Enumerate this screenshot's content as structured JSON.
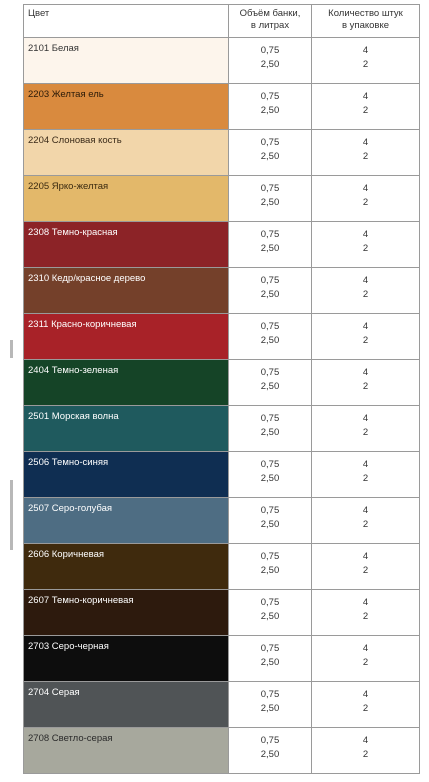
{
  "header": {
    "color": "Цвет",
    "volume_line1": "Объём банки,",
    "volume_line2": "в литрах",
    "qty_line1": "Количество штук",
    "qty_line2": "в упаковке"
  },
  "rows": [
    {
      "name": "2101 Белая",
      "color": "#fdf5ec",
      "text": "#333333",
      "v1": "0,75",
      "v2": "2,50",
      "q1": "4",
      "q2": "2"
    },
    {
      "name": "2203 Желтая ель",
      "color": "#d98a3e",
      "text": "#2a1a08",
      "v1": "0,75",
      "v2": "2,50",
      "q1": "4",
      "q2": "2"
    },
    {
      "name": "2204 Слоновая кость",
      "color": "#f2d6aa",
      "text": "#3a2a18",
      "v1": "0,75",
      "v2": "2,50",
      "q1": "4",
      "q2": "2"
    },
    {
      "name": "2205 Ярко-желтая",
      "color": "#e3b86a",
      "text": "#3a2a10",
      "v1": "0,75",
      "v2": "2,50",
      "q1": "4",
      "q2": "2"
    },
    {
      "name": "2308 Темно-красная",
      "color": "#8c2327",
      "text": "#ffffff",
      "v1": "0,75",
      "v2": "2,50",
      "q1": "4",
      "q2": "2"
    },
    {
      "name": "2310 Кедр/красное дерево",
      "color": "#74402a",
      "text": "#ffffff",
      "v1": "0,75",
      "v2": "2,50",
      "q1": "4",
      "q2": "2"
    },
    {
      "name": "2311 Красно-коричневая",
      "color": "#a82228",
      "text": "#ffffff",
      "v1": "0,75",
      "v2": "2,50",
      "q1": "4",
      "q2": "2"
    },
    {
      "name": "2404 Темно-зеленая",
      "color": "#154427",
      "text": "#ffffff",
      "v1": "0,75",
      "v2": "2,50",
      "q1": "4",
      "q2": "2"
    },
    {
      "name": "2501 Морская волна",
      "color": "#1f5a5e",
      "text": "#ffffff",
      "v1": "0,75",
      "v2": "2,50",
      "q1": "4",
      "q2": "2"
    },
    {
      "name": "2506 Темно-синяя",
      "color": "#0f2e52",
      "text": "#ffffff",
      "v1": "0,75",
      "v2": "2,50",
      "q1": "4",
      "q2": "2"
    },
    {
      "name": "2507 Серо-голубая",
      "color": "#4e6d83",
      "text": "#ffffff",
      "v1": "0,75",
      "v2": "2,50",
      "q1": "4",
      "q2": "2"
    },
    {
      "name": "2606 Коричневая",
      "color": "#3f2a0d",
      "text": "#ffffff",
      "v1": "0,75",
      "v2": "2,50",
      "q1": "4",
      "q2": "2"
    },
    {
      "name": "2607 Темно-коричневая",
      "color": "#2d1a0d",
      "text": "#ffffff",
      "v1": "0,75",
      "v2": "2,50",
      "q1": "4",
      "q2": "2"
    },
    {
      "name": "2703 Серо-черная",
      "color": "#0d0d0d",
      "text": "#ffffff",
      "v1": "0,75",
      "v2": "2,50",
      "q1": "4",
      "q2": "2"
    },
    {
      "name": "2704 Серая",
      "color": "#505456",
      "text": "#ffffff",
      "v1": "0,75",
      "v2": "2,50",
      "q1": "4",
      "q2": "2"
    },
    {
      "name": "2708 Светло-серая",
      "color": "#a7a89d",
      "text": "#2a2a2a",
      "v1": "0,75",
      "v2": "2,50",
      "q1": "4",
      "q2": "2"
    }
  ]
}
